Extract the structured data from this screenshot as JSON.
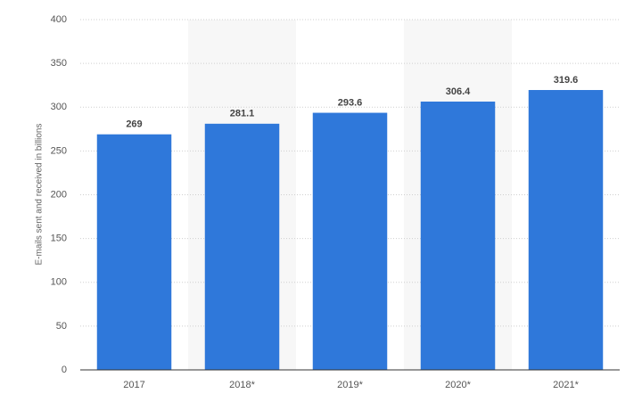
{
  "chart_data": {
    "type": "bar",
    "y_label": "E-mails sent and received in billions",
    "categories": [
      "2017",
      "2018*",
      "2019*",
      "2020*",
      "2021*"
    ],
    "values": [
      269,
      281.1,
      293.6,
      306.4,
      319.6
    ],
    "color": "#2f78da",
    "ylim": [
      0,
      400
    ],
    "yticks": [
      0,
      50,
      100,
      150,
      200,
      250,
      300,
      350,
      400
    ],
    "grid": true,
    "alternate_band_shading": true,
    "data_labels": true
  }
}
